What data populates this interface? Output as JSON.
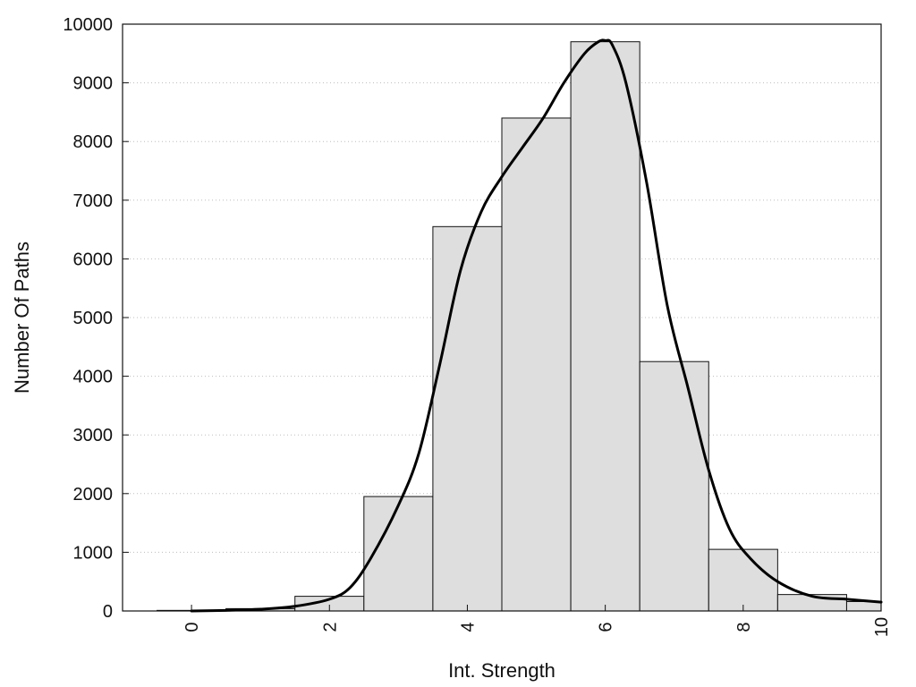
{
  "chart_data": {
    "type": "bar",
    "title": "",
    "xlabel": "Int. Strength",
    "ylabel": "Number Of Paths",
    "xlim": [
      -1,
      10
    ],
    "ylim": [
      0,
      10000
    ],
    "x_ticks": [
      0,
      2,
      4,
      6,
      8,
      10
    ],
    "y_ticks": [
      0,
      1000,
      2000,
      3000,
      4000,
      5000,
      6000,
      7000,
      8000,
      9000,
      10000
    ],
    "grid": "horizontal-dotted",
    "bin_width": 1,
    "bars": {
      "x": [
        0,
        1,
        2,
        3,
        4,
        5,
        6,
        7,
        8,
        9,
        10
      ],
      "values": [
        10,
        40,
        250,
        1950,
        6550,
        8400,
        9700,
        4250,
        1050,
        280,
        160
      ]
    },
    "curve": {
      "x": [
        0,
        0.5,
        1,
        1.5,
        2,
        2.3,
        2.6,
        3,
        3.3,
        3.6,
        3.9,
        4.2,
        4.5,
        4.8,
        5.1,
        5.4,
        5.7,
        5.9,
        6.0,
        6.1,
        6.3,
        6.6,
        6.9,
        7.2,
        7.5,
        7.8,
        8.1,
        8.5,
        9,
        9.5,
        10
      ],
      "values": [
        0,
        10,
        30,
        80,
        200,
        400,
        900,
        1800,
        2700,
        4200,
        5800,
        6800,
        7400,
        7900,
        8400,
        9000,
        9500,
        9700,
        9720,
        9650,
        9000,
        7300,
        5200,
        3800,
        2400,
        1400,
        900,
        500,
        250,
        200,
        150
      ]
    }
  }
}
